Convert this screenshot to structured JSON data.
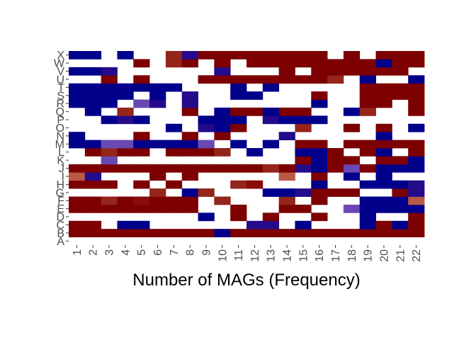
{
  "chart_data": {
    "type": "heatmap",
    "xlabel": "Number of MAGs (Frequency)",
    "ylabel": "",
    "title": "",
    "x_categories": [
      "1",
      "2",
      "3",
      "4",
      "5",
      "6",
      "7",
      "8",
      "9",
      "10",
      "11",
      "12",
      "13",
      "14",
      "15",
      "16",
      "17",
      "18",
      "19",
      "20",
      "21",
      "22"
    ],
    "y_categories": [
      "A",
      "B",
      "C",
      "D",
      "E",
      "F",
      "G",
      "H",
      "I",
      "J",
      "K",
      "L",
      "M",
      "N",
      "O",
      "P",
      "Q",
      "R",
      "S",
      "T",
      "U",
      "V",
      "W",
      "X"
    ],
    "value_range": [
      0,
      7
    ],
    "color_scale": {
      "0": "#ffffff",
      "1": "#00008b",
      "2": "#250a8b",
      "3": "#6a48b3",
      "4": "#7d0000",
      "5": "#8b0a0a",
      "6": "#94251a",
      "7": "#b85a46"
    },
    "values": [
      [
        0,
        0,
        0,
        0,
        0,
        0,
        0,
        0,
        0,
        0,
        0,
        0,
        0,
        0,
        0,
        0,
        0,
        0,
        0,
        0,
        0,
        0
      ],
      [
        4,
        4,
        4,
        4,
        4,
        4,
        4,
        4,
        4,
        1,
        4,
        4,
        4,
        4,
        4,
        4,
        4,
        4,
        4,
        4,
        4,
        4
      ],
      [
        4,
        4,
        0,
        1,
        1,
        0,
        0,
        0,
        0,
        0,
        0,
        2,
        2,
        0,
        1,
        0,
        0,
        0,
        1,
        4,
        1,
        4
      ],
      [
        0,
        0,
        0,
        0,
        0,
        0,
        0,
        0,
        1,
        0,
        4,
        0,
        4,
        0,
        0,
        4,
        0,
        0,
        1,
        0,
        0,
        4
      ],
      [
        4,
        4,
        4,
        4,
        4,
        4,
        4,
        4,
        0,
        0,
        4,
        0,
        0,
        4,
        4,
        0,
        0,
        3,
        1,
        1,
        1,
        1
      ],
      [
        4,
        4,
        6,
        4,
        5,
        4,
        4,
        4,
        0,
        6,
        0,
        0,
        0,
        6,
        0,
        4,
        0,
        0,
        1,
        1,
        1,
        7
      ],
      [
        0,
        0,
        0,
        0,
        0,
        6,
        0,
        1,
        6,
        0,
        0,
        0,
        1,
        1,
        2,
        4,
        4,
        4,
        0,
        0,
        4,
        2
      ],
      [
        4,
        4,
        4,
        0,
        4,
        0,
        4,
        0,
        0,
        0,
        6,
        5,
        0,
        0,
        0,
        1,
        0,
        0,
        1,
        1,
        1,
        2
      ],
      [
        7,
        2,
        0,
        0,
        0,
        4,
        0,
        4,
        0,
        0,
        0,
        0,
        0,
        7,
        0,
        4,
        0,
        1,
        0,
        1,
        0,
        0
      ],
      [
        4,
        4,
        4,
        4,
        4,
        4,
        4,
        4,
        4,
        4,
        4,
        4,
        6,
        4,
        2,
        1,
        4,
        3,
        4,
        1,
        1,
        1
      ],
      [
        0,
        0,
        3,
        0,
        0,
        0,
        0,
        0,
        0,
        0,
        0,
        0,
        0,
        0,
        4,
        1,
        4,
        4,
        0,
        4,
        4,
        1
      ],
      [
        0,
        4,
        6,
        4,
        4,
        0,
        4,
        4,
        4,
        6,
        0,
        1,
        0,
        0,
        1,
        1,
        4,
        0,
        4,
        1,
        0,
        4
      ],
      [
        1,
        1,
        3,
        3,
        1,
        1,
        1,
        1,
        3,
        0,
        1,
        0,
        1,
        0,
        4,
        4,
        0,
        4,
        4,
        4,
        4,
        4
      ],
      [
        1,
        0,
        0,
        0,
        4,
        0,
        0,
        4,
        0,
        4,
        0,
        0,
        0,
        2,
        0,
        0,
        0,
        0,
        0,
        1,
        0,
        0
      ],
      [
        0,
        0,
        0,
        0,
        0,
        0,
        1,
        0,
        2,
        1,
        4,
        0,
        0,
        0,
        6,
        0,
        0,
        4,
        0,
        4,
        0,
        1
      ],
      [
        0,
        0,
        1,
        2,
        1,
        0,
        0,
        0,
        1,
        1,
        1,
        0,
        2,
        1,
        1,
        1,
        0,
        0,
        0,
        0,
        0,
        0
      ],
      [
        0,
        1,
        0,
        6,
        0,
        0,
        0,
        4,
        0,
        1,
        4,
        4,
        1,
        4,
        4,
        0,
        0,
        1,
        6,
        0,
        0,
        4
      ],
      [
        1,
        1,
        1,
        0,
        3,
        2,
        0,
        2,
        0,
        0,
        0,
        0,
        0,
        0,
        0,
        1,
        0,
        0,
        4,
        4,
        0,
        4
      ],
      [
        1,
        1,
        1,
        1,
        0,
        1,
        0,
        2,
        0,
        0,
        1,
        1,
        0,
        0,
        0,
        4,
        0,
        0,
        4,
        4,
        4,
        4
      ],
      [
        1,
        1,
        1,
        1,
        1,
        1,
        1,
        0,
        0,
        0,
        1,
        0,
        1,
        0,
        0,
        0,
        0,
        0,
        4,
        4,
        4,
        4
      ],
      [
        0,
        0,
        4,
        0,
        4,
        0,
        0,
        0,
        4,
        4,
        4,
        4,
        4,
        4,
        4,
        4,
        6,
        0,
        1,
        0,
        0,
        1
      ],
      [
        1,
        1,
        2,
        0,
        0,
        0,
        0,
        0,
        0,
        2,
        0,
        0,
        0,
        4,
        0,
        4,
        4,
        4,
        4,
        4,
        4,
        0
      ],
      [
        0,
        0,
        0,
        0,
        4,
        0,
        6,
        4,
        0,
        4,
        0,
        4,
        4,
        4,
        4,
        4,
        4,
        4,
        4,
        1,
        4,
        4
      ],
      [
        1,
        1,
        0,
        1,
        0,
        0,
        6,
        2,
        4,
        4,
        4,
        4,
        4,
        4,
        4,
        4,
        0,
        4,
        0,
        4,
        4,
        4
      ]
    ]
  }
}
